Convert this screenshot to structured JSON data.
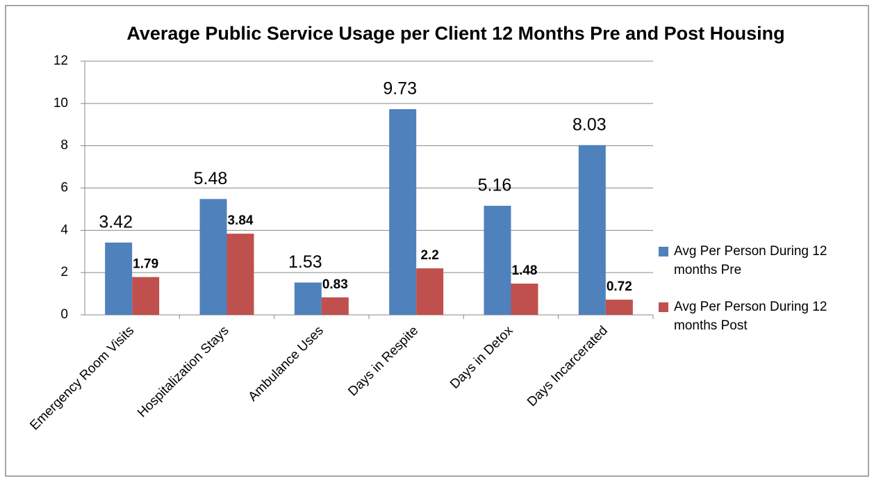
{
  "chart_data": {
    "type": "bar",
    "title": "Average Public Service Usage per Client 12 Months Pre and Post Housing",
    "categories": [
      "Emergency Room Visits",
      "Hospitalization Stays",
      "Ambulance Uses",
      "Days in Respite",
      "Days in Detox",
      "Days Incarcerated"
    ],
    "series": [
      {
        "name": "Avg Per Person During 12 months Pre",
        "color": "#4f81bd",
        "values": [
          3.42,
          5.48,
          1.53,
          9.73,
          5.16,
          8.03
        ]
      },
      {
        "name": "Avg Per Person During 12 months Post",
        "color": "#c0504d",
        "values": [
          1.79,
          3.84,
          0.83,
          2.2,
          1.48,
          0.72
        ]
      }
    ],
    "ylim": [
      0,
      12
    ],
    "yticks": [
      0,
      2,
      4,
      6,
      8,
      10,
      12
    ],
    "grid": true,
    "legend": "right"
  }
}
